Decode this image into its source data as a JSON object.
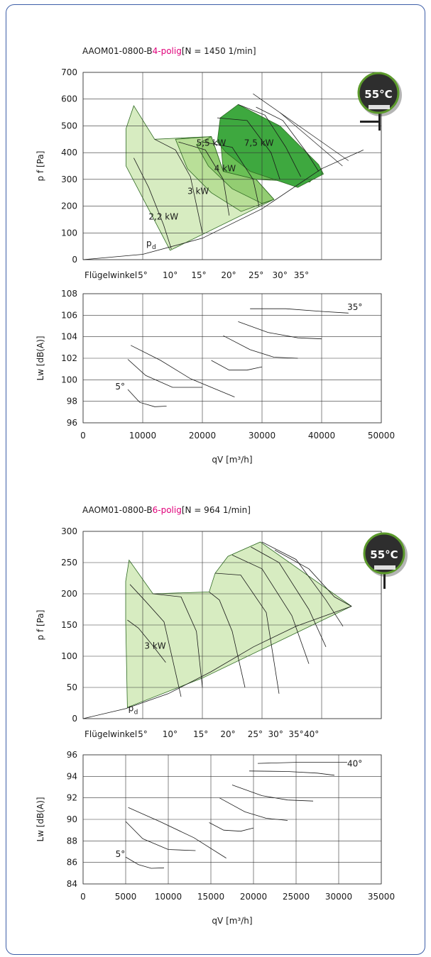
{
  "badge_text": "55°C",
  "colors": {
    "frame": "#3d5ea8",
    "area_light": "#d7ecc1",
    "area_mid1": "#b9df98",
    "area_mid2": "#93cd72",
    "area_dark1": "#6abf55",
    "area_dark2": "#3ea83f",
    "pole_highlight": "#e0007a",
    "badge_ring": "#5c9a2c"
  },
  "chart_data": [
    {
      "id": "p4_pressure",
      "type": "area",
      "title_prefix": "AAOM01-0800-B",
      "title_struck": "4",
      "title_highlight": "4-polig",
      "title_suffix": "[N = 1450 1/min]",
      "ylabel": "p  f [Pa]",
      "ylim": [
        0,
        700
      ],
      "yticks": [
        "700",
        "600",
        "500",
        "400",
        "300",
        "200",
        "100",
        "0"
      ],
      "xlim": [
        0,
        50000
      ],
      "angle_label": "Flügelwinkel",
      "angles": [
        {
          "label": "5°",
          "x": 10000
        },
        {
          "label": "10°",
          "x": 14600
        },
        {
          "label": "15°",
          "x": 19400
        },
        {
          "label": "20°",
          "x": 24400
        },
        {
          "label": "25°",
          "x": 29000
        },
        {
          "label": "30°",
          "x": 33000
        },
        {
          "label": "35°",
          "x": 36600
        }
      ],
      "power_labels": [
        {
          "text": "2,2 kW",
          "x": 11000,
          "y": 150
        },
        {
          "text": "3 kW",
          "x": 17500,
          "y": 245
        },
        {
          "text": "4 kW",
          "x": 22000,
          "y": 330
        },
        {
          "text": "5,5 kW",
          "x": 19000,
          "y": 425
        },
        {
          "text": "7,5 kW",
          "x": 27000,
          "y": 425
        }
      ],
      "pd_label": {
        "text": "p",
        "sub": "d",
        "x": 10600,
        "y": 50
      },
      "envelopes": [
        [
          [
            7200,
            490
          ],
          [
            8500,
            575
          ],
          [
            12000,
            450
          ],
          [
            21500,
            460
          ],
          [
            23500,
            330
          ],
          [
            29000,
            300
          ],
          [
            32000,
            225
          ],
          [
            14600,
            35
          ],
          [
            7200,
            350
          ]
        ],
        [
          [
            15500,
            450
          ],
          [
            21500,
            460
          ],
          [
            23500,
            330
          ],
          [
            29000,
            300
          ],
          [
            32000,
            225
          ],
          [
            26500,
            180
          ],
          [
            21500,
            250
          ],
          [
            17500,
            340
          ]
        ],
        [
          [
            19000,
            430
          ],
          [
            21500,
            460
          ],
          [
            23500,
            330
          ],
          [
            29000,
            300
          ],
          [
            32000,
            225
          ],
          [
            30000,
            210
          ],
          [
            25000,
            265
          ],
          [
            21000,
            350
          ]
        ],
        [
          [
            23000,
            460
          ],
          [
            31000,
            400
          ],
          [
            33000,
            330
          ],
          [
            40000,
            340
          ],
          [
            38000,
            290
          ],
          [
            29000,
            300
          ],
          [
            23500,
            330
          ]
        ],
        [
          [
            22500,
            440
          ],
          [
            23000,
            530
          ],
          [
            26000,
            580
          ],
          [
            33000,
            500
          ],
          [
            39500,
            355
          ],
          [
            40300,
            320
          ],
          [
            36000,
            270
          ],
          [
            28000,
            330
          ],
          [
            24000,
            400
          ]
        ]
      ],
      "speed_curves": [
        [
          [
            8500,
            380
          ],
          [
            11000,
            270
          ],
          [
            13500,
            130
          ],
          [
            14800,
            40
          ]
        ],
        [
          [
            12000,
            450
          ],
          [
            15500,
            410
          ],
          [
            18000,
            310
          ],
          [
            20000,
            100
          ]
        ],
        [
          [
            16000,
            440
          ],
          [
            20500,
            410
          ],
          [
            23500,
            300
          ],
          [
            24500,
            165
          ]
        ],
        [
          [
            20000,
            440
          ],
          [
            25000,
            420
          ],
          [
            28500,
            300
          ],
          [
            29500,
            200
          ]
        ],
        [
          [
            22500,
            530
          ],
          [
            27500,
            520
          ],
          [
            31500,
            400
          ],
          [
            33000,
            300
          ]
        ],
        [
          [
            26000,
            580
          ],
          [
            30500,
            540
          ],
          [
            34000,
            420
          ],
          [
            36500,
            310
          ]
        ],
        [
          [
            29000,
            570
          ],
          [
            33500,
            520
          ],
          [
            37500,
            400
          ],
          [
            39500,
            330
          ]
        ]
      ],
      "pd_curve": [
        [
          0,
          0
        ],
        [
          10000,
          20
        ],
        [
          20000,
          80
        ],
        [
          30000,
          190
        ],
        [
          40000,
          340
        ],
        [
          47000,
          410
        ]
      ],
      "limit_lines": [
        [
          [
            28500,
            620
          ],
          [
            44500,
            370
          ]
        ],
        [
          [
            33000,
            550
          ],
          [
            43500,
            350
          ]
        ]
      ]
    },
    {
      "id": "p4_sound",
      "type": "line",
      "ylabel": "Lw [dB(A)]",
      "xlabel": "qV [m³/h]",
      "ylim": [
        96,
        108
      ],
      "yticks": [
        "108",
        "106",
        "104",
        "102",
        "100",
        "98",
        "96"
      ],
      "xlim": [
        0,
        50000
      ],
      "xticks": [
        "0",
        "10000",
        "20000",
        "30000",
        "40000",
        "50000"
      ],
      "annotations": [
        {
          "text": "5°",
          "x": 5400,
          "y": 99.1
        },
        {
          "text": "35°",
          "x": 44300,
          "y": 106.5
        }
      ],
      "series": [
        {
          "points": [
            [
              7500,
              99.1
            ],
            [
              9500,
              97.9
            ],
            [
              12000,
              97.5
            ],
            [
              14000,
              97.55
            ]
          ]
        },
        {
          "points": [
            [
              7500,
              101.9
            ],
            [
              10500,
              100.4
            ],
            [
              15000,
              99.3
            ],
            [
              20000,
              99.3
            ]
          ]
        },
        {
          "points": [
            [
              8000,
              103.2
            ],
            [
              13000,
              101.8
            ],
            [
              18000,
              100.1
            ],
            [
              25400,
              98.4
            ]
          ]
        },
        {
          "points": [
            [
              21500,
              101.8
            ],
            [
              24500,
              100.9
            ],
            [
              27500,
              100.9
            ],
            [
              30000,
              101.2
            ]
          ]
        },
        {
          "points": [
            [
              23500,
              104.1
            ],
            [
              28000,
              102.8
            ],
            [
              32000,
              102.1
            ],
            [
              36000,
              102.0
            ]
          ]
        },
        {
          "points": [
            [
              26000,
              105.4
            ],
            [
              31000,
              104.4
            ],
            [
              36000,
              103.9
            ],
            [
              40000,
              103.8
            ]
          ]
        },
        {
          "points": [
            [
              28000,
              106.6
            ],
            [
              34000,
              106.6
            ],
            [
              40000,
              106.35
            ],
            [
              44500,
              106.2
            ]
          ]
        }
      ]
    },
    {
      "id": "p6_pressure",
      "type": "area",
      "title_prefix": "AAOM01-0800-B",
      "title_struck": "6",
      "title_highlight": "6-polig",
      "title_suffix": "[N = 964 1/min]",
      "ylabel": "p  f [Pa]",
      "ylim": [
        0,
        300
      ],
      "yticks": [
        "300",
        "250",
        "200",
        "150",
        "100",
        "50",
        "0"
      ],
      "xlim": [
        0,
        35000
      ],
      "angle_label": "Flügelwinkel",
      "angles": [
        {
          "label": "5°",
          "x": 7000
        },
        {
          "label": "10°",
          "x": 10200
        },
        {
          "label": "15°",
          "x": 13800
        },
        {
          "label": "20°",
          "x": 17000
        },
        {
          "label": "25°",
          "x": 20200
        },
        {
          "label": "30°",
          "x": 22600
        },
        {
          "label": "35°",
          "x": 25000
        },
        {
          "label": "40°",
          "x": 26800
        }
      ],
      "power_labels": [
        {
          "text": "3 kW",
          "x": 7200,
          "y": 112
        }
      ],
      "pd_label": {
        "text": "p",
        "sub": "d",
        "x": 5300,
        "y": 12
      },
      "envelopes": [
        [
          [
            5000,
            220
          ],
          [
            5400,
            254
          ],
          [
            8200,
            200
          ],
          [
            14800,
            203
          ],
          [
            15500,
            233
          ],
          [
            17000,
            260
          ],
          [
            20800,
            283
          ],
          [
            31500,
            180
          ],
          [
            14000,
            65
          ],
          [
            5200,
            18
          ],
          [
            5000,
            157
          ]
        ]
      ],
      "speed_curves": [
        [
          [
            5200,
            158
          ],
          [
            6500,
            145
          ],
          [
            8000,
            120
          ],
          [
            9700,
            90
          ]
        ],
        [
          [
            5500,
            215
          ],
          [
            7200,
            190
          ],
          [
            9500,
            155
          ],
          [
            11500,
            35
          ]
        ],
        [
          [
            8200,
            200
          ],
          [
            11500,
            195
          ],
          [
            13300,
            140
          ],
          [
            14000,
            50
          ]
        ],
        [
          [
            14800,
            203
          ],
          [
            16000,
            190
          ],
          [
            17500,
            140
          ],
          [
            19000,
            50
          ]
        ],
        [
          [
            15500,
            233
          ],
          [
            18500,
            230
          ],
          [
            21500,
            170
          ],
          [
            23000,
            40
          ]
        ],
        [
          [
            17500,
            262
          ],
          [
            21000,
            240
          ],
          [
            24500,
            165
          ],
          [
            26500,
            88
          ]
        ],
        [
          [
            19700,
            275
          ],
          [
            23000,
            250
          ],
          [
            26500,
            175
          ],
          [
            28500,
            115
          ]
        ],
        [
          [
            21000,
            283
          ],
          [
            25000,
            255
          ],
          [
            28500,
            190
          ],
          [
            30500,
            148
          ]
        ],
        [
          [
            22500,
            270
          ],
          [
            26500,
            240
          ],
          [
            29500,
            195
          ],
          [
            31500,
            180
          ]
        ]
      ],
      "pd_curve": [
        [
          0,
          0
        ],
        [
          5000,
          16
        ],
        [
          10000,
          40
        ],
        [
          15000,
          75
        ],
        [
          20000,
          115
        ],
        [
          25000,
          148
        ],
        [
          31500,
          180
        ]
      ],
      "limit_lines": []
    },
    {
      "id": "p6_sound",
      "type": "line",
      "ylabel": "Lw [dB(A)]",
      "xlabel": "qV [m³/h]",
      "ylim": [
        84,
        96
      ],
      "yticks": [
        "96",
        "94",
        "92",
        "90",
        "88",
        "86",
        "84"
      ],
      "xlim": [
        0,
        35000
      ],
      "xticks": [
        "0",
        "5000",
        "10000",
        "15000",
        "20000",
        "25000",
        "30000",
        "35000"
      ],
      "annotations": [
        {
          "text": "5°",
          "x": 3800,
          "y": 86.5
        },
        {
          "text": "40°",
          "x": 31000,
          "y": 94.9
        }
      ],
      "series": [
        {
          "points": [
            [
              5000,
              86.5
            ],
            [
              6500,
              85.8
            ],
            [
              8000,
              85.45
            ],
            [
              9500,
              85.5
            ]
          ]
        },
        {
          "points": [
            [
              5000,
              89.8
            ],
            [
              7000,
              88.2
            ],
            [
              10000,
              87.2
            ],
            [
              13200,
              87.1
            ]
          ]
        },
        {
          "points": [
            [
              5300,
              91.1
            ],
            [
              9000,
              89.8
            ],
            [
              13000,
              88.3
            ],
            [
              16800,
              86.4
            ]
          ]
        },
        {
          "points": [
            [
              14800,
              89.7
            ],
            [
              16500,
              89.0
            ],
            [
              18500,
              88.9
            ],
            [
              20000,
              89.2
            ]
          ]
        },
        {
          "points": [
            [
              16000,
              92.0
            ],
            [
              19000,
              90.7
            ],
            [
              21500,
              90.1
            ],
            [
              24000,
              89.9
            ]
          ]
        },
        {
          "points": [
            [
              17500,
              93.2
            ],
            [
              21000,
              92.2
            ],
            [
              24000,
              91.8
            ],
            [
              27000,
              91.7
            ]
          ]
        },
        {
          "points": [
            [
              19500,
              94.5
            ],
            [
              24000,
              94.45
            ],
            [
              27500,
              94.3
            ],
            [
              29500,
              94.1
            ]
          ]
        },
        {
          "points": [
            [
              20500,
              95.2
            ],
            [
              25000,
              95.3
            ],
            [
              28500,
              95.3
            ],
            [
              31000,
              95.3
            ]
          ]
        }
      ]
    }
  ]
}
